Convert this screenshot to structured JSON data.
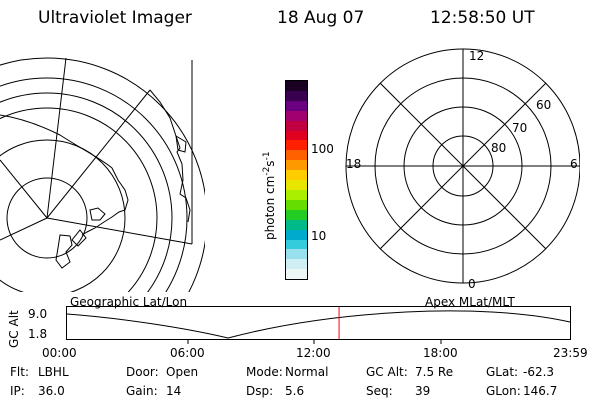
{
  "header": {
    "instrument": "Ultraviolet Imager",
    "date": "18 Aug 07",
    "time": "12:58:50 UT"
  },
  "colorbar": {
    "unit_label": "photon cm",
    "unit_exp1": "-2",
    "unit_mid": "s",
    "unit_exp2": "-1",
    "tick_100": "100",
    "tick_10": "10",
    "colors_top_to_bottom": [
      "#1a0022",
      "#3a0050",
      "#6a0080",
      "#a00070",
      "#c00040",
      "#e00020",
      "#ff2000",
      "#ff6000",
      "#ff9900",
      "#ffcc00",
      "#e6e600",
      "#aaee00",
      "#66dd00",
      "#22cc22",
      "#00bb88",
      "#00aacc",
      "#33ccdd",
      "#99e0ee",
      "#cfeff5",
      "#eef6f6"
    ]
  },
  "left_map": {
    "label": "Geographic Lat/Lon"
  },
  "polar_plot": {
    "label": "Apex MLat/MLT",
    "mlt_labels": {
      "top": "12",
      "left": "18",
      "right": "6",
      "bottom": "0"
    },
    "lat_labels": [
      "60",
      "70",
      "80"
    ]
  },
  "timeline": {
    "axis_label": "GC Alt",
    "y_ticks": [
      "9.0",
      "1.8"
    ],
    "x_ticks": [
      "00:00",
      "06:00",
      "12:00",
      "18:00",
      "23:59"
    ],
    "current_marker_time": "12:58:50",
    "current_marker_fraction": 0.5409,
    "colors": {
      "marker": "#ff0000"
    }
  },
  "status": {
    "row1": [
      {
        "key": "Flt:",
        "value": "LBHL"
      },
      {
        "key": "Door:",
        "value": "Open"
      },
      {
        "key": "Mode:",
        "value": "Normal"
      },
      {
        "key": "GC Alt:",
        "value": "7.5 Re"
      },
      {
        "key": "GLat:",
        "value": "-62.3"
      }
    ],
    "row2": [
      {
        "key": "IP:",
        "value": "36.0"
      },
      {
        "key": "Gain:",
        "value": "14"
      },
      {
        "key": "Dsp:",
        "value": "5.6"
      },
      {
        "key": "Seq:",
        "value": "39"
      },
      {
        "key": "GLon:",
        "value": "146.7"
      }
    ]
  }
}
